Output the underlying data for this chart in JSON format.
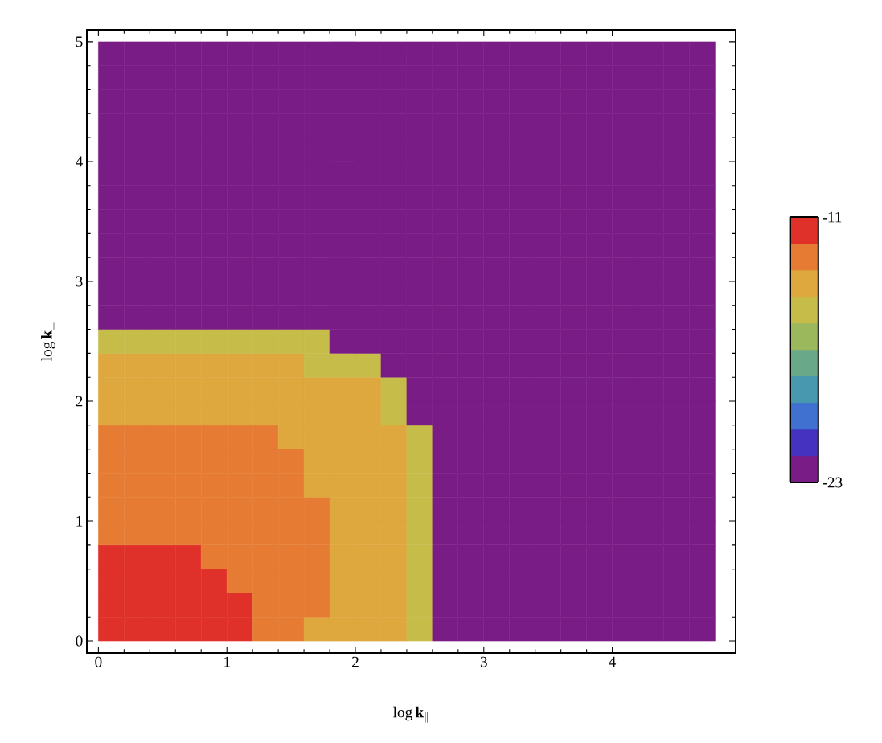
{
  "chart_data": {
    "type": "heatmap",
    "xlabel": "\\log \\mathbf{k}_\\parallel",
    "ylabel": "\\log \\mathbf{k}_\\perp",
    "x": [
      0.1,
      0.3,
      0.5,
      0.7,
      0.9,
      1.1,
      1.3,
      1.5,
      1.7,
      1.9,
      2.1,
      2.3,
      2.5,
      2.7,
      2.9,
      3.1,
      3.3,
      3.5,
      3.7,
      3.9,
      4.1,
      4.3,
      4.5,
      4.7
    ],
    "y": [
      4.9,
      4.7,
      4.5,
      4.3,
      4.1,
      3.9,
      3.7,
      3.5,
      3.3,
      3.1,
      2.9,
      2.7,
      2.5,
      2.3,
      2.1,
      1.9,
      1.7,
      1.5,
      1.3,
      1.1,
      0.9,
      0.7,
      0.5,
      0.3,
      0.1
    ],
    "cells": [
      [
        -22.4,
        -22.4,
        -22.4,
        -22.4,
        -22.4,
        -22.4,
        -22.4,
        -22.4,
        -22.4,
        -22.4,
        -22.4,
        -22.4,
        -22.4,
        -22.4,
        -22.4,
        -22.4,
        -22.4,
        -22.4,
        -22.4,
        -22.4,
        -22.4,
        -22.4,
        -22.4,
        -22.4
      ],
      [
        -22.4,
        -22.4,
        -22.4,
        -22.4,
        -22.4,
        -22.4,
        -22.4,
        -22.4,
        -22.4,
        -22.4,
        -22.4,
        -22.4,
        -22.4,
        -22.4,
        -22.4,
        -22.4,
        -22.4,
        -22.4,
        -22.4,
        -22.4,
        -22.4,
        -22.4,
        -22.4,
        -22.4
      ],
      [
        -22.4,
        -22.4,
        -22.4,
        -22.4,
        -22.4,
        -22.4,
        -22.4,
        -22.4,
        -22.4,
        -22.4,
        -22.4,
        -22.4,
        -22.4,
        -22.4,
        -22.4,
        -22.4,
        -22.4,
        -22.4,
        -22.4,
        -22.4,
        -22.4,
        -22.4,
        -22.4,
        -22.4
      ],
      [
        -22.4,
        -22.4,
        -22.4,
        -22.4,
        -22.4,
        -22.4,
        -22.4,
        -22.4,
        -22.4,
        -22.4,
        -22.4,
        -22.4,
        -22.4,
        -22.4,
        -22.4,
        -22.4,
        -22.4,
        -22.4,
        -22.4,
        -22.4,
        -22.4,
        -22.4,
        -22.4,
        -22.4
      ],
      [
        -22.4,
        -22.4,
        -22.4,
        -22.4,
        -22.4,
        -22.4,
        -22.4,
        -22.4,
        -22.4,
        -22.4,
        -22.4,
        -22.4,
        -22.4,
        -22.4,
        -22.4,
        -22.4,
        -22.4,
        -22.4,
        -22.4,
        -22.4,
        -22.4,
        -22.4,
        -22.4,
        -22.4
      ],
      [
        -22.4,
        -22.4,
        -22.4,
        -22.4,
        -22.4,
        -22.4,
        -22.4,
        -22.4,
        -22.4,
        -22.4,
        -22.4,
        -22.4,
        -22.4,
        -22.4,
        -22.4,
        -22.4,
        -22.4,
        -22.4,
        -22.4,
        -22.4,
        -22.4,
        -22.4,
        -22.4,
        -22.4
      ],
      [
        -22.4,
        -22.4,
        -22.4,
        -22.4,
        -22.4,
        -22.4,
        -22.4,
        -22.4,
        -22.4,
        -22.4,
        -22.4,
        -22.4,
        -22.4,
        -22.4,
        -22.4,
        -22.4,
        -22.4,
        -22.4,
        -22.4,
        -22.4,
        -22.4,
        -22.4,
        -22.4,
        -22.4
      ],
      [
        -22.4,
        -22.4,
        -22.4,
        -22.4,
        -22.4,
        -22.4,
        -22.4,
        -22.4,
        -22.4,
        -22.4,
        -22.4,
        -22.4,
        -22.4,
        -22.4,
        -22.4,
        -22.4,
        -22.4,
        -22.4,
        -22.4,
        -22.4,
        -22.4,
        -22.4,
        -22.4,
        -22.4
      ],
      [
        -22.4,
        -22.4,
        -22.4,
        -22.4,
        -22.4,
        -22.4,
        -22.4,
        -22.4,
        -22.4,
        -22.4,
        -22.4,
        -22.4,
        -22.4,
        -22.4,
        -22.4,
        -22.4,
        -22.4,
        -22.4,
        -22.4,
        -22.4,
        -22.4,
        -22.4,
        -22.4,
        -22.4
      ],
      [
        -22.4,
        -22.4,
        -22.4,
        -22.4,
        -22.4,
        -22.4,
        -22.4,
        -22.4,
        -22.4,
        -22.4,
        -22.4,
        -22.4,
        -22.4,
        -22.4,
        -22.4,
        -22.4,
        -22.4,
        -22.4,
        -22.4,
        -22.4,
        -22.4,
        -22.4,
        -22.4,
        -22.4
      ],
      [
        -22.4,
        -22.4,
        -22.4,
        -22.4,
        -22.4,
        -22.4,
        -22.4,
        -22.4,
        -22.4,
        -22.4,
        -22.4,
        -22.4,
        -22.4,
        -22.4,
        -22.4,
        -22.4,
        -22.4,
        -22.4,
        -22.4,
        -22.4,
        -22.4,
        -22.4,
        -22.4,
        -22.4
      ],
      [
        -22.4,
        -22.4,
        -22.4,
        -22.4,
        -22.4,
        -22.4,
        -22.4,
        -22.4,
        -22.4,
        -22.4,
        -22.4,
        -22.4,
        -22.4,
        -22.4,
        -22.4,
        -22.4,
        -22.4,
        -22.4,
        -22.4,
        -22.4,
        -22.4,
        -22.4,
        -22.4,
        -22.4
      ],
      [
        -15.2,
        -15.2,
        -15.2,
        -15.2,
        -15.2,
        -15.2,
        -15.2,
        -15.2,
        -15.2,
        -22.4,
        -22.4,
        -22.4,
        -22.4,
        -22.4,
        -22.4,
        -22.4,
        -22.4,
        -22.4,
        -22.4,
        -22.4,
        -22.4,
        -22.4,
        -22.4,
        -22.4
      ],
      [
        -14,
        -14,
        -14,
        -14,
        -14,
        -14,
        -14,
        -14,
        -15.2,
        -15.2,
        -15.2,
        -22.4,
        -22.4,
        -22.4,
        -22.4,
        -22.4,
        -22.4,
        -22.4,
        -22.4,
        -22.4,
        -22.4,
        -22.4,
        -22.4,
        -22.4
      ],
      [
        -14,
        -14,
        -14,
        -14,
        -14,
        -14,
        -14,
        -14,
        -14,
        -14,
        -14,
        -15.2,
        -22.4,
        -22.4,
        -22.4,
        -22.4,
        -22.4,
        -22.4,
        -22.4,
        -22.4,
        -22.4,
        -22.4,
        -22.4,
        -22.4
      ],
      [
        -14,
        -14,
        -14,
        -14,
        -14,
        -14,
        -14,
        -14,
        -14,
        -14,
        -14,
        -15.2,
        -22.4,
        -22.4,
        -22.4,
        -22.4,
        -22.4,
        -22.4,
        -22.4,
        -22.4,
        -22.4,
        -22.4,
        -22.4,
        -22.4
      ],
      [
        -12.8,
        -12.8,
        -12.8,
        -12.8,
        -12.8,
        -12.8,
        -12.8,
        -14,
        -14,
        -14,
        -14,
        -14,
        -15.2,
        -22.4,
        -22.4,
        -22.4,
        -22.4,
        -22.4,
        -22.4,
        -22.4,
        -22.4,
        -22.4,
        -22.4,
        -22.4
      ],
      [
        -12.8,
        -12.8,
        -12.8,
        -12.8,
        -12.8,
        -12.8,
        -12.8,
        -12.8,
        -14,
        -14,
        -14,
        -14,
        -15.2,
        -22.4,
        -22.4,
        -22.4,
        -22.4,
        -22.4,
        -22.4,
        -22.4,
        -22.4,
        -22.4,
        -22.4,
        -22.4
      ],
      [
        -12.8,
        -12.8,
        -12.8,
        -12.8,
        -12.8,
        -12.8,
        -12.8,
        -12.8,
        -14,
        -14,
        -14,
        -14,
        -15.2,
        -22.4,
        -22.4,
        -22.4,
        -22.4,
        -22.4,
        -22.4,
        -22.4,
        -22.4,
        -22.4,
        -22.4,
        -22.4
      ],
      [
        -12.8,
        -12.8,
        -12.8,
        -12.8,
        -12.8,
        -12.8,
        -12.8,
        -12.8,
        -12.8,
        -14,
        -14,
        -14,
        -15.2,
        -22.4,
        -22.4,
        -22.4,
        -22.4,
        -22.4,
        -22.4,
        -22.4,
        -22.4,
        -22.4,
        -22.4,
        -22.4
      ],
      [
        -12.8,
        -12.8,
        -12.8,
        -12.8,
        -12.8,
        -12.8,
        -12.8,
        -12.8,
        -12.8,
        -14,
        -14,
        -14,
        -15.2,
        -22.4,
        -22.4,
        -22.4,
        -22.4,
        -22.4,
        -22.4,
        -22.4,
        -22.4,
        -22.4,
        -22.4,
        -22.4
      ],
      [
        -11.6,
        -11.6,
        -11.6,
        -11.6,
        -12.8,
        -12.8,
        -12.8,
        -12.8,
        -12.8,
        -14,
        -14,
        -14,
        -15.2,
        -22.4,
        -22.4,
        -22.4,
        -22.4,
        -22.4,
        -22.4,
        -22.4,
        -22.4,
        -22.4,
        -22.4,
        -22.4
      ],
      [
        -11.6,
        -11.6,
        -11.6,
        -11.6,
        -11.6,
        -12.8,
        -12.8,
        -12.8,
        -12.8,
        -14,
        -14,
        -14,
        -15.2,
        -22.4,
        -22.4,
        -22.4,
        -22.4,
        -22.4,
        -22.4,
        -22.4,
        -22.4,
        -22.4,
        -22.4,
        -22.4
      ],
      [
        -11.6,
        -11.6,
        -11.6,
        -11.6,
        -11.6,
        -11.6,
        -12.8,
        -12.8,
        -12.8,
        -14,
        -14,
        -14,
        -15.2,
        -22.4,
        -22.4,
        -22.4,
        -22.4,
        -22.4,
        -22.4,
        -22.4,
        -22.4,
        -22.4,
        -22.4,
        -22.4
      ],
      [
        -11.6,
        -11.6,
        -11.6,
        -11.6,
        -11.6,
        -11.6,
        -12.8,
        -12.8,
        -14,
        -14,
        -14,
        -14,
        -15.2,
        -22.4,
        -22.4,
        -22.4,
        -22.4,
        -22.4,
        -22.4,
        -22.4,
        -22.4,
        -22.4,
        -22.4,
        -22.4
      ]
    ],
    "colors": [
      "#7a1c86",
      "#4632c0",
      "#4070d0",
      "#4898b0",
      "#6aa88a",
      "#9cb85c",
      "#c6bc4a",
      "#dea83e",
      "#e67c34",
      "#e0302a"
    ],
    "clim": [
      -23,
      -11
    ],
    "cticks": [
      -23,
      -11
    ],
    "xlim": [
      -0.09,
      4.96
    ],
    "ylim": [
      -0.1,
      5.1
    ],
    "xticks": [
      0,
      1,
      2,
      3,
      4
    ],
    "yticks": [
      0,
      1,
      2,
      3,
      4,
      5
    ]
  }
}
